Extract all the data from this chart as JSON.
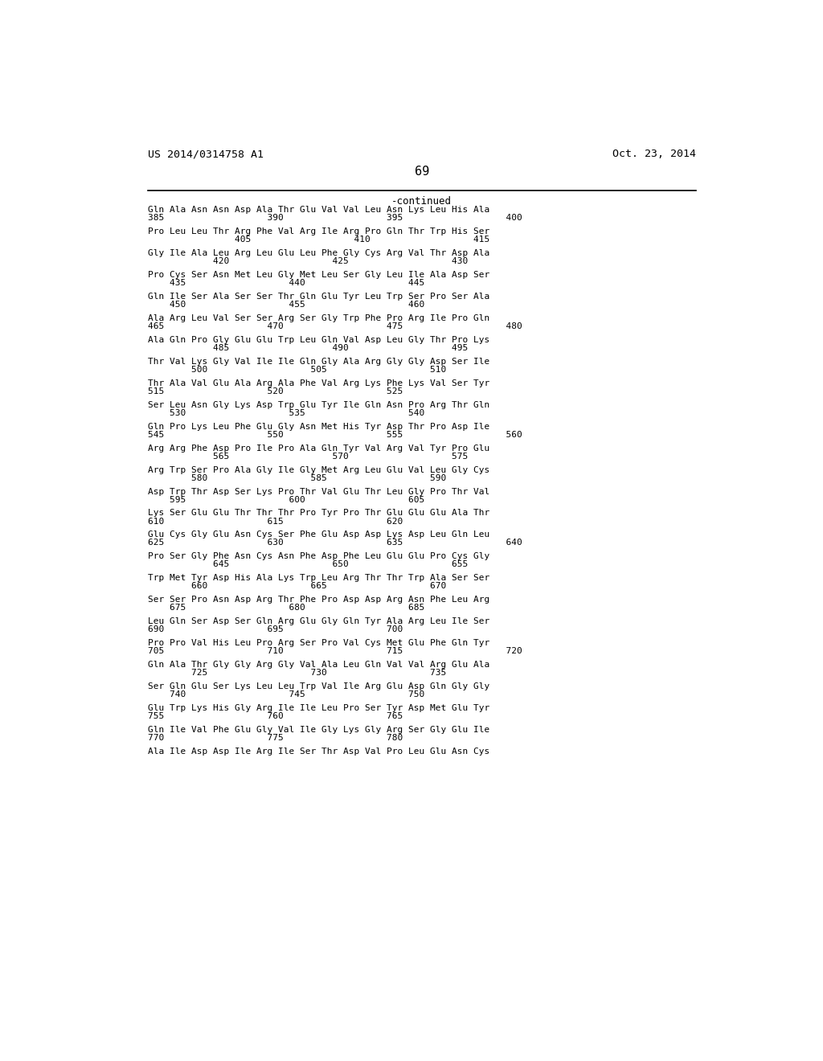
{
  "patent_number": "US 2014/0314758 A1",
  "date": "Oct. 23, 2014",
  "page_number": "69",
  "continued_label": "-continued",
  "background_color": "#ffffff",
  "text_color": "#000000",
  "seq_lines": [
    [
      "Gln Ala Asn Asn Asp Ala Thr Glu Val Val Leu Asn Lys Leu His Ala",
      "385                   390                   395                   400"
    ],
    [
      "Pro Leu Leu Thr Arg Phe Val Arg Ile Arg Pro Gln Thr Trp His Ser",
      "                405                   410                   415"
    ],
    [
      "Gly Ile Ala Leu Arg Leu Glu Leu Phe Gly Cys Arg Val Thr Asp Ala",
      "            420                   425                   430"
    ],
    [
      "Pro Cys Ser Asn Met Leu Gly Met Leu Ser Gly Leu Ile Ala Asp Ser",
      "    435                   440                   445"
    ],
    [
      "Gln Ile Ser Ala Ser Ser Thr Gln Glu Tyr Leu Trp Ser Pro Ser Ala",
      "    450                   455                   460"
    ],
    [
      "Ala Arg Leu Val Ser Ser Arg Ser Gly Trp Phe Pro Arg Ile Pro Gln",
      "465                   470                   475                   480"
    ],
    [
      "Ala Gln Pro Gly Glu Glu Trp Leu Gln Val Asp Leu Gly Thr Pro Lys",
      "            485                   490                   495"
    ],
    [
      "Thr Val Lys Gly Val Ile Ile Gln Gly Ala Arg Gly Gly Asp Ser Ile",
      "        500                   505                   510"
    ],
    [
      "Thr Ala Val Glu Ala Arg Ala Phe Val Arg Lys Phe Lys Val Ser Tyr",
      "515                   520                   525"
    ],
    [
      "Ser Leu Asn Gly Lys Asp Trp Glu Tyr Ile Gln Asn Pro Arg Thr Gln",
      "    530                   535                   540"
    ],
    [
      "Gln Pro Lys Leu Phe Glu Gly Asn Met His Tyr Asp Thr Pro Asp Ile",
      "545                   550                   555                   560"
    ],
    [
      "Arg Arg Phe Asp Pro Ile Pro Ala Gln Tyr Val Arg Val Tyr Pro Glu",
      "            565                   570                   575"
    ],
    [
      "Arg Trp Ser Pro Ala Gly Ile Gly Met Arg Leu Glu Val Leu Gly Cys",
      "        580                   585                   590"
    ],
    [
      "Asp Trp Thr Asp Ser Lys Pro Thr Val Glu Thr Leu Gly Pro Thr Val",
      "    595                   600                   605"
    ],
    [
      "Lys Ser Glu Glu Thr Thr Thr Pro Tyr Pro Thr Glu Glu Glu Ala Thr",
      "610                   615                   620"
    ],
    [
      "Glu Cys Gly Glu Asn Cys Ser Phe Glu Asp Asp Lys Asp Leu Gln Leu",
      "625                   630                   635                   640"
    ],
    [
      "Pro Ser Gly Phe Asn Cys Asn Phe Asp Phe Leu Glu Glu Pro Cys Gly",
      "            645                   650                   655"
    ],
    [
      "Trp Met Tyr Asp His Ala Lys Trp Leu Arg Thr Thr Trp Ala Ser Ser",
      "        660                   665                   670"
    ],
    [
      "Ser Ser Pro Asn Asp Arg Thr Phe Pro Asp Asp Arg Asn Phe Leu Arg",
      "    675                   680                   685"
    ],
    [
      "Leu Gln Ser Asp Ser Gln Arg Glu Gly Gln Tyr Ala Arg Leu Ile Ser",
      "690                   695                   700"
    ],
    [
      "Pro Pro Val His Leu Pro Arg Ser Pro Val Cys Met Glu Phe Gln Tyr",
      "705                   710                   715                   720"
    ],
    [
      "Gln Ala Thr Gly Gly Arg Gly Val Ala Leu Gln Val Val Arg Glu Ala",
      "        725                   730                   735"
    ],
    [
      "Ser Gln Glu Ser Lys Leu Leu Trp Val Ile Arg Glu Asp Gln Gly Gly",
      "    740                   745                   750"
    ],
    [
      "Glu Trp Lys His Gly Arg Ile Ile Leu Pro Ser Tyr Asp Met Glu Tyr",
      "755                   760                   765"
    ],
    [
      "Gln Ile Val Phe Glu Gly Val Ile Gly Lys Gly Arg Ser Gly Glu Ile",
      "770                   775                   780"
    ],
    [
      "Ala Ile Asp Asp Ile Arg Ile Ser Thr Asp Val Pro Leu Glu Asn Cys",
      ""
    ]
  ]
}
